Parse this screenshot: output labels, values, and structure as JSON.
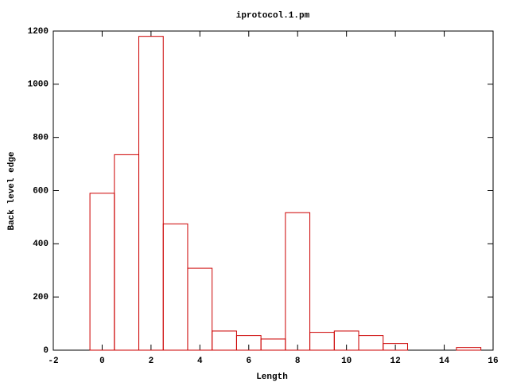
{
  "chart_data": {
    "type": "histogram",
    "title": "iprotocol.1.pm",
    "x_label": "Length",
    "y_label": "Back level edge",
    "bins": [
      -0.5,
      0.5,
      1.5,
      2.5,
      3.5,
      4.5,
      5.5,
      6.5,
      7.5,
      8.5,
      9.5,
      10.5,
      11.5,
      12.5,
      13.5,
      14.5,
      15.5
    ],
    "values": [
      590,
      735,
      1180,
      475,
      308,
      72,
      55,
      42,
      517,
      67,
      72,
      55,
      25,
      0,
      0,
      10
    ],
    "color": "#cc0000",
    "xlim": [
      -2,
      16
    ],
    "xticks": [
      -2,
      0,
      2,
      4,
      6,
      8,
      10,
      12,
      14,
      16
    ],
    "ylim": [
      0,
      1200
    ],
    "yticks": [
      0,
      200,
      400,
      600,
      800,
      1000,
      1200
    ]
  }
}
